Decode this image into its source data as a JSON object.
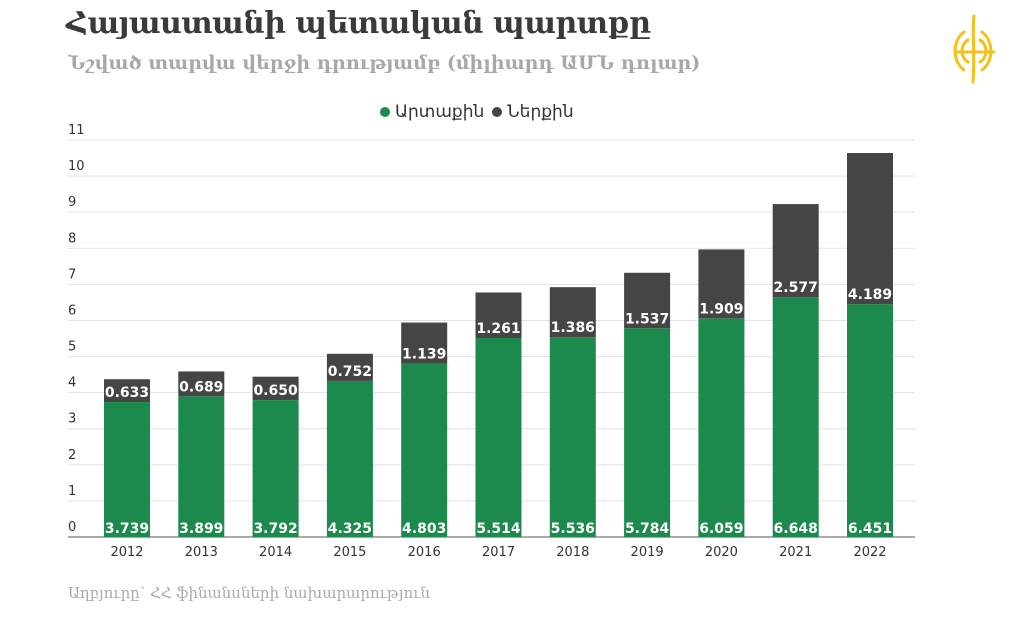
{
  "header": {
    "title": "Հայաստանի պետական պարտքը",
    "subtitle": "Նշված տարվա վերջի դրությամբ (միլիարդ ԱՄՆ դոլար)"
  },
  "source": "Աղբյուրը՝ ՀՀ ֆինանսների նախարարություն",
  "logo": {
    "icon": "golden-emblem-logo",
    "color": "#f2c21b"
  },
  "chart_data": {
    "type": "bar",
    "stacked": true,
    "categories": [
      "2012",
      "2013",
      "2014",
      "2015",
      "2016",
      "2017",
      "2018",
      "2019",
      "2020",
      "2021",
      "2022"
    ],
    "series": [
      {
        "name": "Արտաքին",
        "color": "#1b8a4c",
        "values": [
          3.739,
          3.899,
          3.792,
          4.325,
          4.803,
          5.514,
          5.536,
          5.784,
          6.059,
          6.648,
          6.451
        ]
      },
      {
        "name": "Ներքին",
        "color": "#454545",
        "values": [
          0.633,
          0.689,
          0.65,
          0.752,
          1.139,
          1.261,
          1.386,
          1.537,
          1.909,
          2.577,
          4.189
        ]
      }
    ],
    "ylim": [
      0,
      11
    ],
    "yticks": [
      "0",
      "1",
      "2",
      "3",
      "4",
      "5",
      "6",
      "7",
      "8",
      "9",
      "10",
      "11"
    ],
    "grid": true,
    "legend": "top-center"
  }
}
